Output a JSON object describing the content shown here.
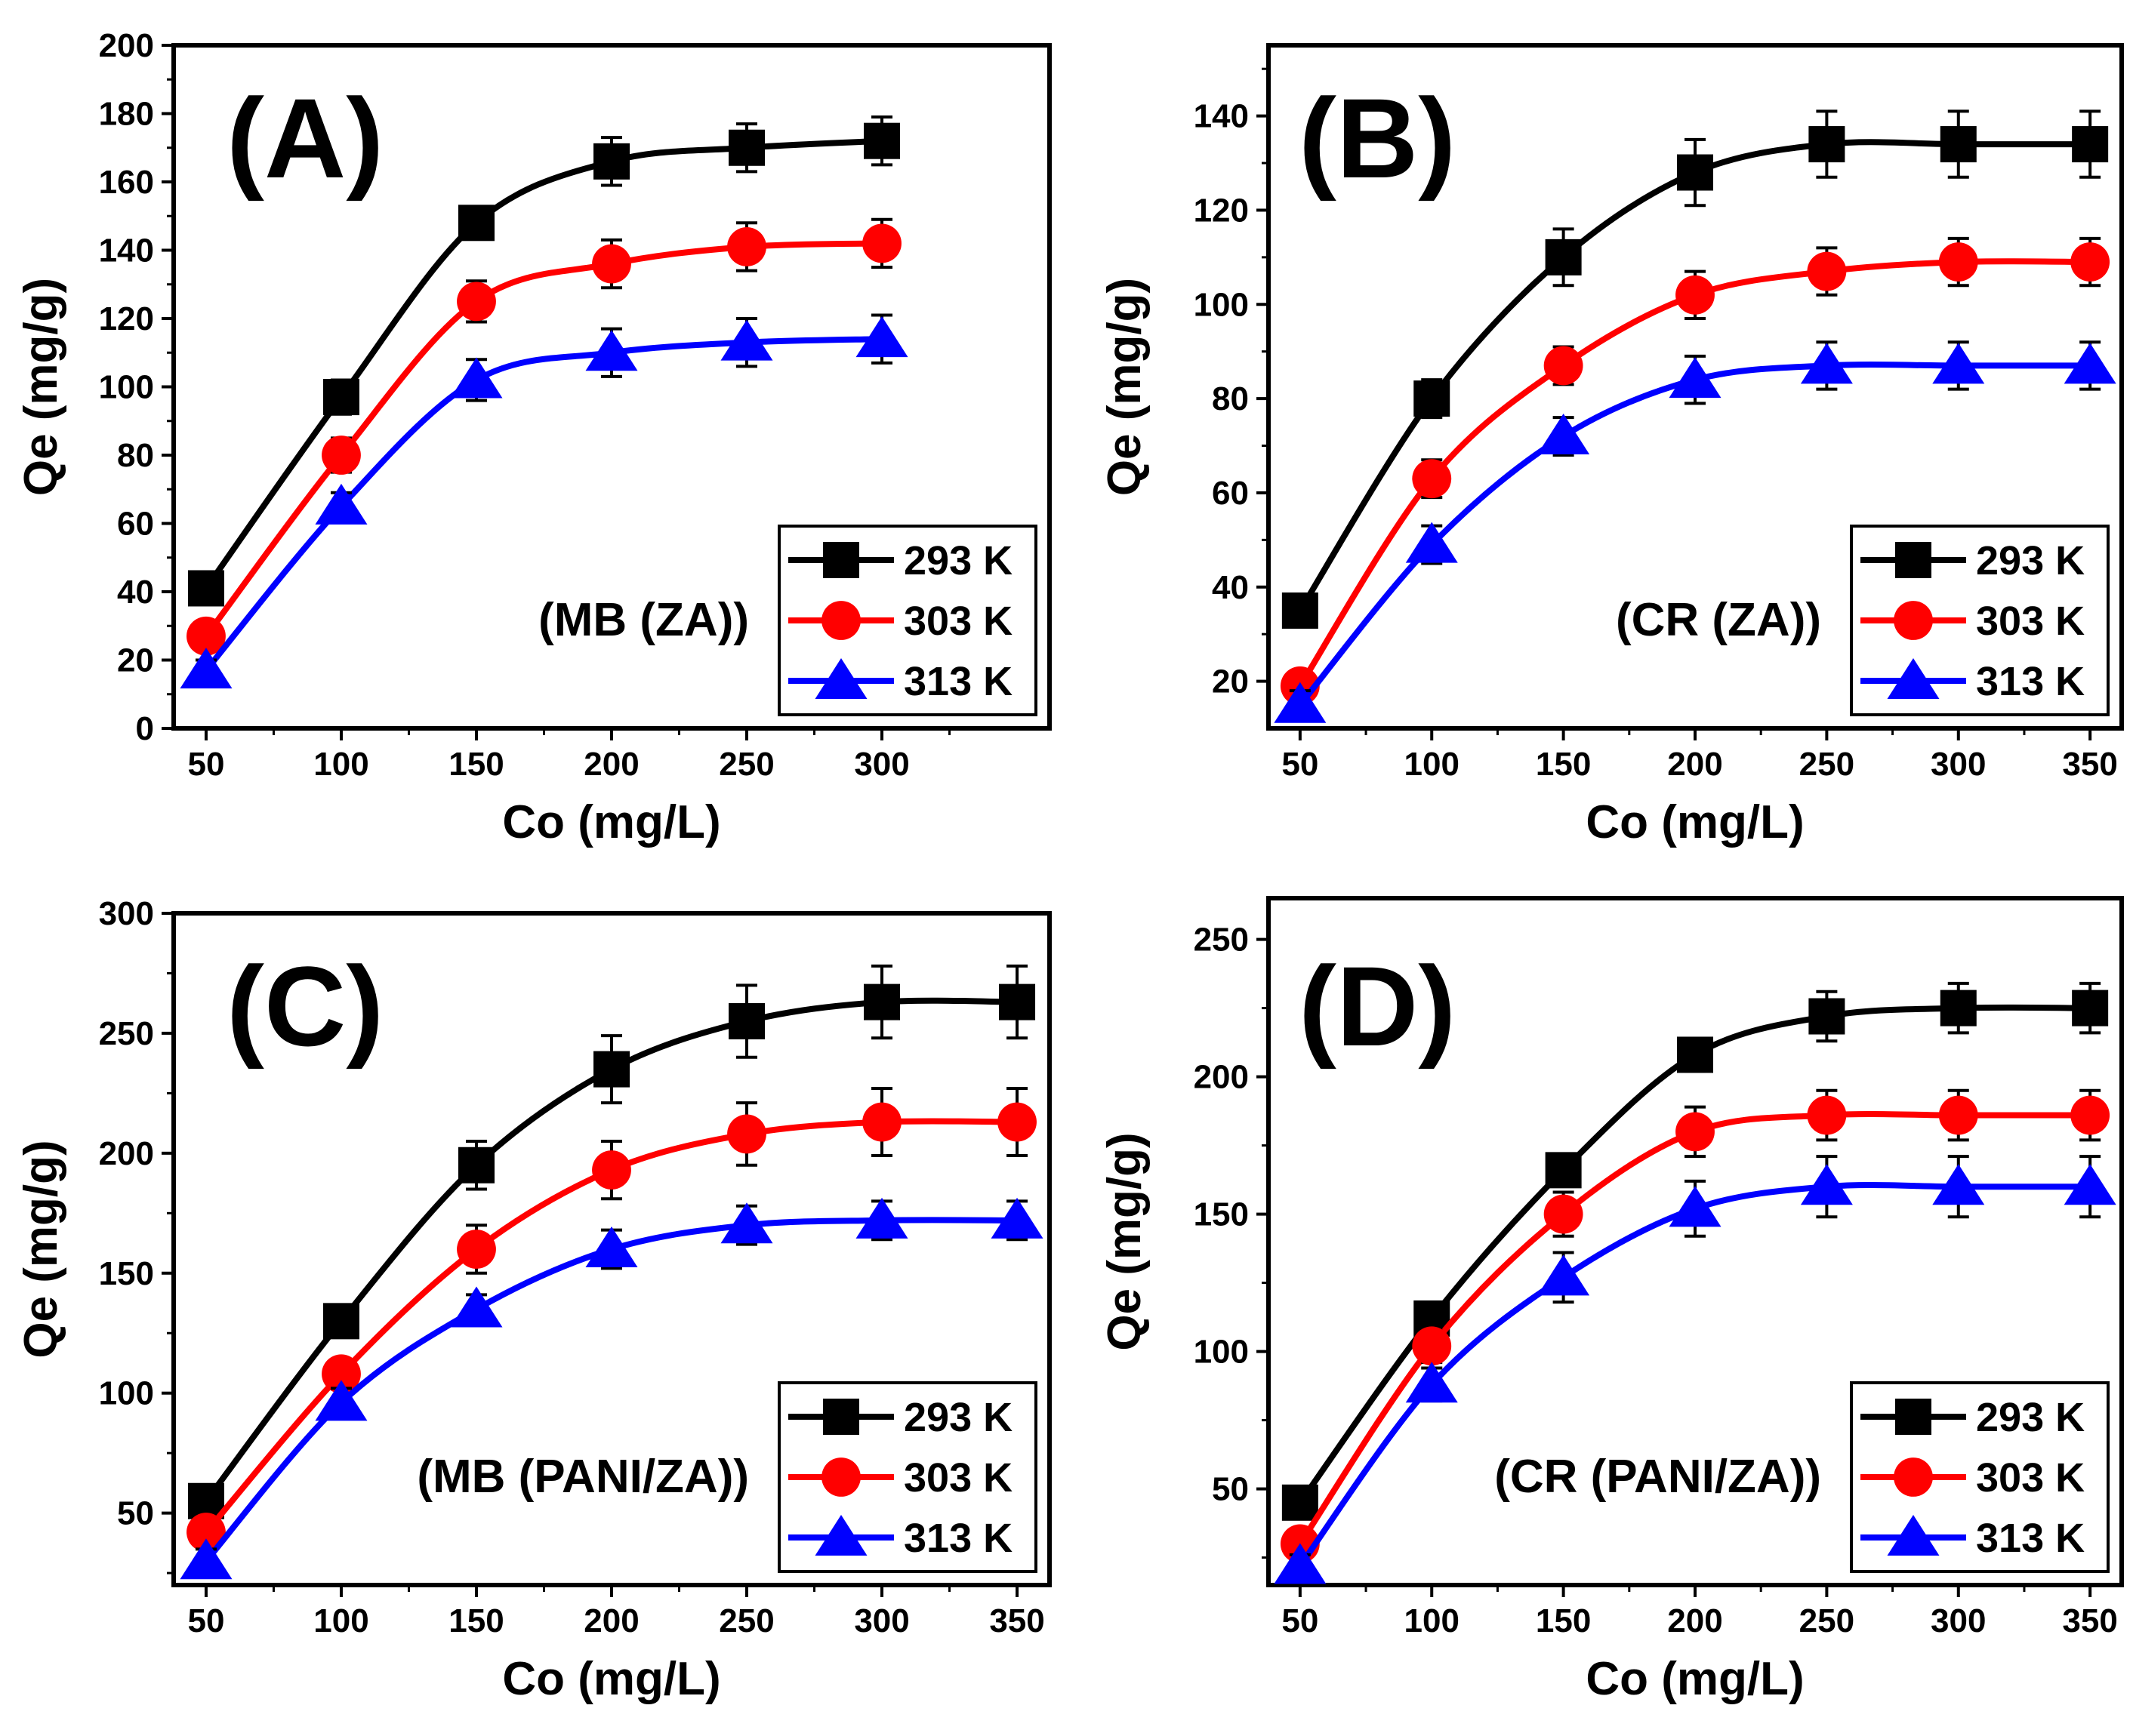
{
  "chart_data": [
    {
      "type": "line",
      "panel_label": "(A)",
      "annotation": "(MB (ZA))",
      "xlabel": "Co (mg/L)",
      "ylabel": "Qe (mg/g)",
      "xlim": [
        38,
        362
      ],
      "ylim": [
        0,
        200
      ],
      "xticks": [
        50,
        100,
        150,
        200,
        250,
        300
      ],
      "yticks": [
        0,
        20,
        40,
        60,
        80,
        100,
        120,
        140,
        160,
        180,
        200
      ],
      "x": [
        50,
        100,
        150,
        200,
        250,
        300
      ],
      "legend_position": "bottom-right",
      "series": [
        {
          "name": "293 K",
          "color": "#000000",
          "marker": "square",
          "values": [
            41,
            97,
            148,
            166,
            170,
            172
          ],
          "errors": [
            3,
            5,
            4,
            7,
            7,
            7
          ]
        },
        {
          "name": "303 K",
          "color": "#ff0000",
          "marker": "circle",
          "values": [
            27,
            80,
            125,
            136,
            141,
            142
          ],
          "errors": [
            3,
            5,
            6,
            7,
            7,
            7
          ]
        },
        {
          "name": "313 K",
          "color": "#0000ff",
          "marker": "triangle",
          "values": [
            17,
            65,
            102,
            110,
            113,
            114
          ],
          "errors": [
            3,
            4,
            6,
            7,
            7,
            7
          ]
        }
      ]
    },
    {
      "type": "line",
      "panel_label": "(B)",
      "annotation": "(CR (ZA))",
      "xlabel": "Co (mg/L)",
      "ylabel": "Qe (mg/g)",
      "xlim": [
        38,
        362
      ],
      "ylim": [
        10,
        155
      ],
      "xticks": [
        50,
        100,
        150,
        200,
        250,
        300,
        350
      ],
      "yticks": [
        20,
        40,
        60,
        80,
        100,
        120,
        140
      ],
      "x": [
        50,
        100,
        150,
        200,
        250,
        300,
        350
      ],
      "legend_position": "bottom-right",
      "series": [
        {
          "name": "293 K",
          "color": "#000000",
          "marker": "square",
          "values": [
            35,
            80,
            110,
            128,
            134,
            134,
            134
          ],
          "errors": [
            3,
            4,
            6,
            7,
            7,
            7,
            7
          ]
        },
        {
          "name": "303 K",
          "color": "#ff0000",
          "marker": "circle",
          "values": [
            19,
            63,
            87,
            102,
            107,
            109,
            109
          ],
          "errors": [
            3,
            4,
            4,
            5,
            5,
            5,
            5
          ]
        },
        {
          "name": "313 K",
          "color": "#0000ff",
          "marker": "triangle",
          "values": [
            15,
            49,
            72,
            84,
            87,
            87,
            87
          ],
          "errors": [
            3,
            4,
            4,
            5,
            5,
            5,
            5
          ]
        }
      ]
    },
    {
      "type": "line",
      "panel_label": "(C)",
      "annotation": "(MB (PANI/ZA))",
      "xlabel": "Co (mg/L)",
      "ylabel": "Qe (mg/g)",
      "xlim": [
        38,
        362
      ],
      "ylim": [
        20,
        300
      ],
      "xticks": [
        50,
        100,
        150,
        200,
        250,
        300,
        350
      ],
      "yticks": [
        50,
        100,
        150,
        200,
        250,
        300
      ],
      "x": [
        50,
        100,
        150,
        200,
        250,
        300,
        350
      ],
      "legend_position": "bottom-right",
      "series": [
        {
          "name": "293 K",
          "color": "#000000",
          "marker": "square",
          "values": [
            55,
            130,
            195,
            235,
            255,
            263,
            263
          ],
          "errors": [
            5,
            6,
            10,
            14,
            15,
            15,
            15
          ]
        },
        {
          "name": "303 K",
          "color": "#ff0000",
          "marker": "circle",
          "values": [
            42,
            108,
            160,
            193,
            208,
            213,
            213
          ],
          "errors": [
            5,
            6,
            10,
            12,
            13,
            14,
            14
          ]
        },
        {
          "name": "313 K",
          "color": "#0000ff",
          "marker": "triangle",
          "values": [
            30,
            96,
            135,
            160,
            170,
            172,
            172
          ],
          "errors": [
            5,
            6,
            6,
            8,
            8,
            8,
            8
          ]
        }
      ]
    },
    {
      "type": "line",
      "panel_label": "(D)",
      "annotation": "(CR (PANI/ZA))",
      "xlabel": "Co (mg/L)",
      "ylabel": "Qe (mg/g)",
      "xlim": [
        38,
        362
      ],
      "ylim": [
        15,
        265
      ],
      "xticks": [
        50,
        100,
        150,
        200,
        250,
        300,
        350
      ],
      "yticks": [
        50,
        100,
        150,
        200,
        250
      ],
      "x": [
        50,
        100,
        150,
        200,
        250,
        300,
        350
      ],
      "legend_position": "bottom-right",
      "series": [
        {
          "name": "293 K",
          "color": "#000000",
          "marker": "square",
          "values": [
            45,
            112,
            166,
            208,
            222,
            225,
            225
          ],
          "errors": [
            4,
            5,
            5,
            6,
            9,
            9,
            9
          ]
        },
        {
          "name": "303 K",
          "color": "#ff0000",
          "marker": "circle",
          "values": [
            30,
            102,
            150,
            180,
            186,
            186,
            186
          ],
          "errors": [
            4,
            6,
            8,
            9,
            9,
            9,
            9
          ]
        },
        {
          "name": "313 K",
          "color": "#0000ff",
          "marker": "triangle",
          "values": [
            22,
            88,
            127,
            152,
            160,
            160,
            160
          ],
          "errors": [
            4,
            6,
            9,
            10,
            11,
            11,
            11
          ]
        }
      ]
    }
  ]
}
